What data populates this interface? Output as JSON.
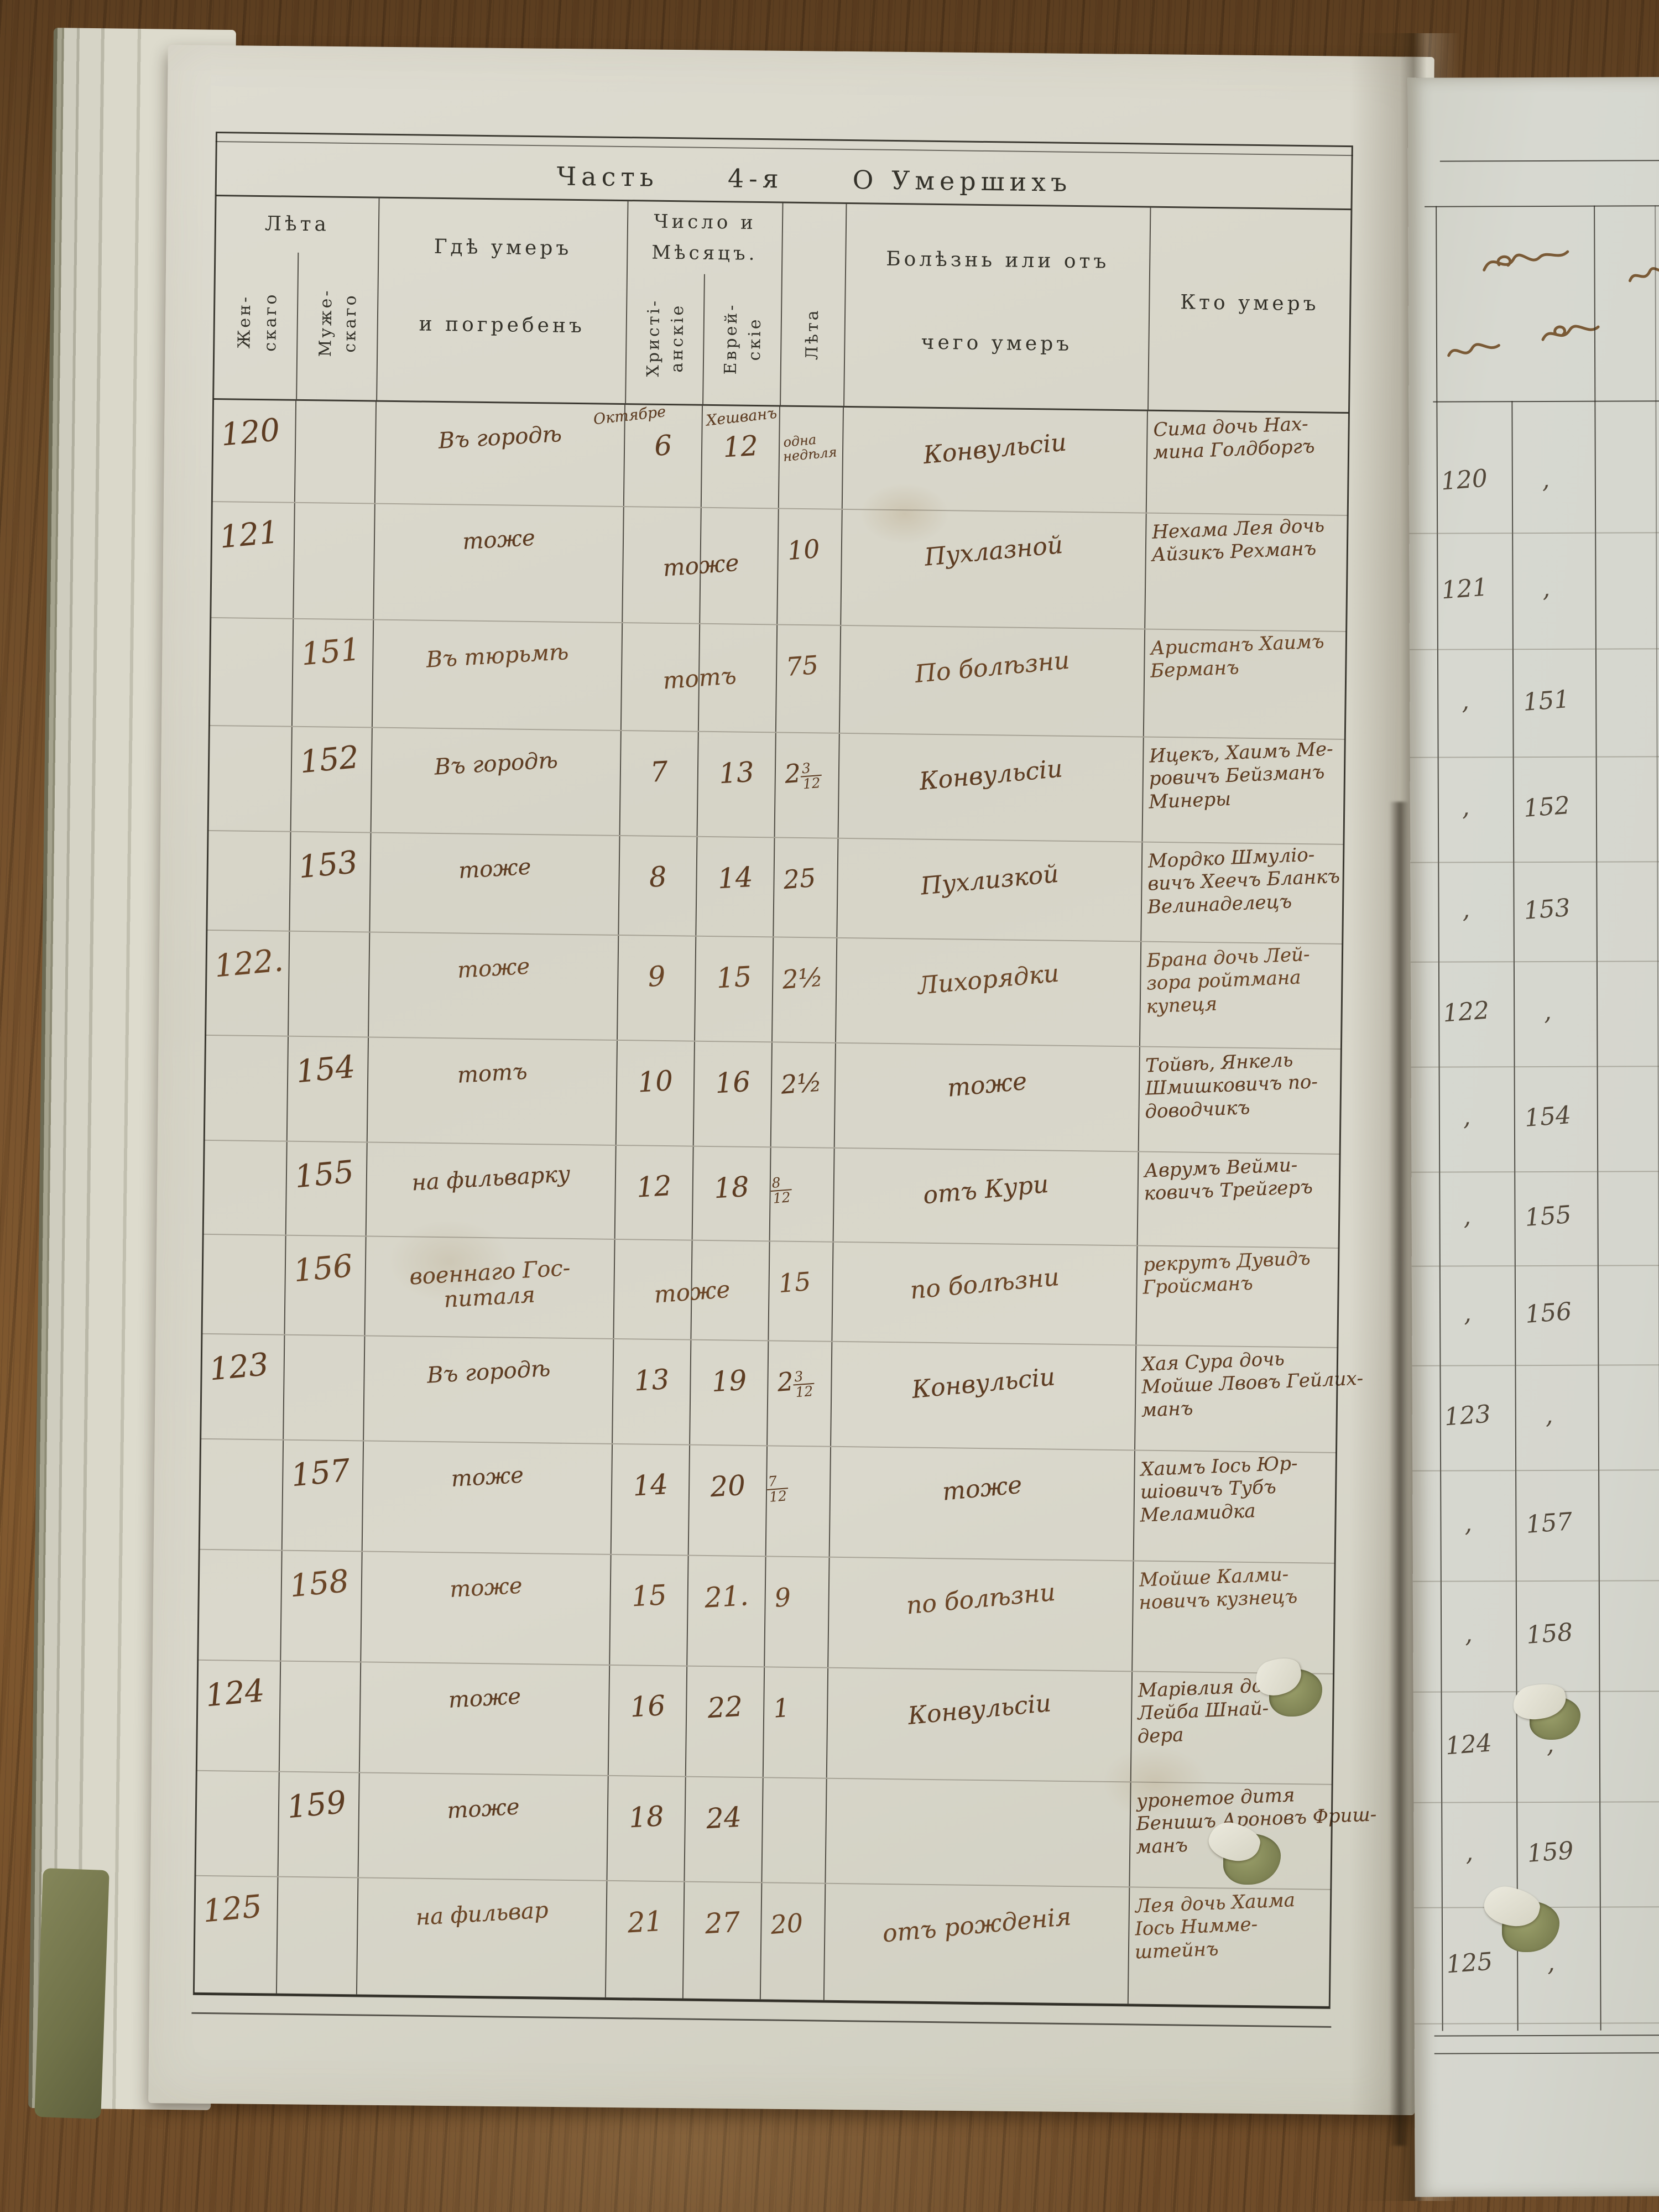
{
  "document": {
    "kind": "metrical death register, photographed book opening",
    "language": "Russian (pre-reform orthography), handwritten entries"
  },
  "colors": {
    "wood": "#6e4b29",
    "paper_left": "#d9d7cb",
    "paper_right": "#d5d6ce",
    "ink": "#5d3c22",
    "ink_right_page": "#53483a",
    "printed_text": "#34322a",
    "rule_line": "#302c24",
    "pencil_line": "#6e685a",
    "cover_green": "#7f814f"
  },
  "table": {
    "title_parts": [
      "Часть",
      "4-я",
      "О Умершихъ"
    ],
    "header": {
      "leta_group": "Лѣта",
      "female_l1": "Жен-",
      "female_l2": "скаго",
      "male_l1": "Муже-",
      "male_l2": "скаго",
      "place_l1": "Гдѣ умеръ",
      "place_l2": "и погребенъ",
      "date_l1": "Число и",
      "date_l2": "Мѣсяцъ.",
      "christian_l1": "Христі-",
      "christian_l2": "анскіе",
      "jewish_l1": "Еврей-",
      "jewish_l2": "скіе",
      "age_v": "Лѣта",
      "disease_l1": "Болѣзнь или отъ",
      "disease_l2": "чего умеръ",
      "who": "Кто умеръ"
    },
    "rows": [
      {
        "num_f": "120",
        "num_m": "",
        "place": [
          "Въ городѣ"
        ],
        "date": {
          "chr": "6",
          "jew": "12",
          "chr_month": "Октябре",
          "jew_month": "Хешванъ"
        },
        "age": {
          "lines": [
            "одна",
            "недѣля"
          ]
        },
        "disease": "Конвульсіи",
        "who": [
          "Сима дочь Нах-",
          "мина Голдборгъ"
        ]
      },
      {
        "num_f": "121",
        "num_m": "",
        "place": [
          "тоже"
        ],
        "date": {
          "span": "тоже"
        },
        "age": {
          "main": "10"
        },
        "disease": "Пухлазной",
        "who": [
          "Нехама Лея дочь",
          "Айзикъ Рехманъ"
        ]
      },
      {
        "num_f": "",
        "num_m": "151",
        "place": [
          "Въ тюрьмѣ"
        ],
        "date": {
          "span": "тотъ"
        },
        "age": {
          "main": "75"
        },
        "disease": "По болѣзни",
        "who": [
          "Аристанъ Хаимъ",
          "Берманъ"
        ]
      },
      {
        "num_f": "",
        "num_m": "152",
        "place": [
          "Въ городѣ"
        ],
        "date": {
          "chr": "7",
          "jew": "13"
        },
        "age": {
          "main": "2",
          "n": "3",
          "d": "12"
        },
        "disease": "Конвульсіи",
        "who": [
          "Ицекъ, Хаимъ Ме-",
          "ровичъ Бейзманъ",
          "Минеры"
        ]
      },
      {
        "num_f": "",
        "num_m": "153",
        "place": [
          "тоже"
        ],
        "date": {
          "chr": "8",
          "jew": "14"
        },
        "age": {
          "main": "25"
        },
        "disease": "Пухлизкой",
        "who": [
          "Мордко Шмуліо-",
          "вичъ Хеечъ Бланкъ",
          "Велинаделецъ"
        ]
      },
      {
        "num_f": "122.",
        "num_m": "",
        "place": [
          "тоже"
        ],
        "date": {
          "chr": "9",
          "jew": "15"
        },
        "age": {
          "main": "2½"
        },
        "disease": "Лихорядки",
        "who": [
          "Брана дочь Лей-",
          "зора ройтмана",
          "купеця"
        ]
      },
      {
        "num_f": "",
        "num_m": "154",
        "place": [
          "тотъ"
        ],
        "date": {
          "chr": "10",
          "jew": "16"
        },
        "age": {
          "main": "2½"
        },
        "disease": "тоже",
        "who": [
          "Тойвѣ, Янкель",
          "Шмишковичъ по-",
          "доводчикъ"
        ]
      },
      {
        "num_f": "",
        "num_m": "155",
        "place": [
          "на фильварку"
        ],
        "date": {
          "chr": "12",
          "jew": "18"
        },
        "age": {
          "n": "8",
          "d": "12"
        },
        "disease": "отъ Кури",
        "who": [
          "Аврумъ Вейми-",
          "ковичъ Трейгеръ"
        ]
      },
      {
        "num_f": "",
        "num_m": "156",
        "place": [
          "военнаго Гос-",
          "питаля"
        ],
        "date": {
          "span": "тоже"
        },
        "age": {
          "main": "15"
        },
        "disease": "по болѣзни",
        "who": [
          "рекрутъ Дувидъ",
          "Гройсманъ"
        ]
      },
      {
        "num_f": "123",
        "num_m": "",
        "place": [
          "Въ городѣ"
        ],
        "date": {
          "chr": "13",
          "jew": "19"
        },
        "age": {
          "main": "2",
          "n": "3",
          "d": "12"
        },
        "disease": "Конвульсіи",
        "who": [
          "Хая Сура дочь",
          "Мойше Лвовъ Гейлих-",
          "манъ"
        ]
      },
      {
        "num_f": "",
        "num_m": "157",
        "place": [
          "тоже"
        ],
        "date": {
          "chr": "14",
          "jew": "20"
        },
        "age": {
          "n": "7",
          "d": "12"
        },
        "disease": "тоже",
        "who": [
          "Хаимъ Іось Юр-",
          "шіовичъ Тубъ",
          "Меламидка"
        ]
      },
      {
        "num_f": "",
        "num_m": "158",
        "place": [
          "тоже"
        ],
        "date": {
          "chr": "15",
          "jew": "21."
        },
        "age": {
          "main": "9"
        },
        "disease": "по болѣзни",
        "who": [
          "Мойше Калми-",
          "новичъ кузнецъ"
        ]
      },
      {
        "num_f": "124",
        "num_m": "",
        "place": [
          "тоже"
        ],
        "date": {
          "chr": "16",
          "jew": "22"
        },
        "age": {
          "main": "1"
        },
        "disease": "Конвульсіи",
        "who": [
          "Марівлия дочь",
          "Лейба Шнай-",
          "дера"
        ]
      },
      {
        "num_f": "",
        "num_m": "159",
        "place": [
          "тоже"
        ],
        "date": {
          "chr": "18",
          "jew": "24"
        },
        "age": {},
        "disease": "",
        "who": [
          "уронетое дитя",
          "Бенишъ Ароновъ Фриш-",
          "манъ"
        ]
      },
      {
        "num_f": "125",
        "num_m": "",
        "place": [
          "на фильвар"
        ],
        "date": {
          "chr": "21",
          "jew": "27"
        },
        "age": {
          "main": "20"
        },
        "disease": "отъ рожденія",
        "who": [
          "Лея дочь Хаима",
          "Іось Нимме-",
          "штейнъ"
        ]
      }
    ]
  },
  "right_page": {
    "script_marks": [
      "cursive-flourish-large",
      "cursive-flourish-left",
      "cursive-flourish-right",
      "cursive-flourish-edge"
    ],
    "rows": [
      {
        "f": "120",
        "m": ","
      },
      {
        "f": "121",
        "m": ","
      },
      {
        "f": ",",
        "m": "151"
      },
      {
        "f": ",",
        "m": "152"
      },
      {
        "f": ",",
        "m": "153"
      },
      {
        "f": "122",
        "m": ","
      },
      {
        "f": ",",
        "m": "154"
      },
      {
        "f": ",",
        "m": "155"
      },
      {
        "f": ",",
        "m": "156"
      },
      {
        "f": "123",
        "m": ","
      },
      {
        "f": ",",
        "m": "157"
      },
      {
        "f": ",",
        "m": "158"
      },
      {
        "f": "124",
        "m": ","
      },
      {
        "f": ",",
        "m": "159"
      },
      {
        "f": "125",
        "m": ","
      }
    ]
  }
}
